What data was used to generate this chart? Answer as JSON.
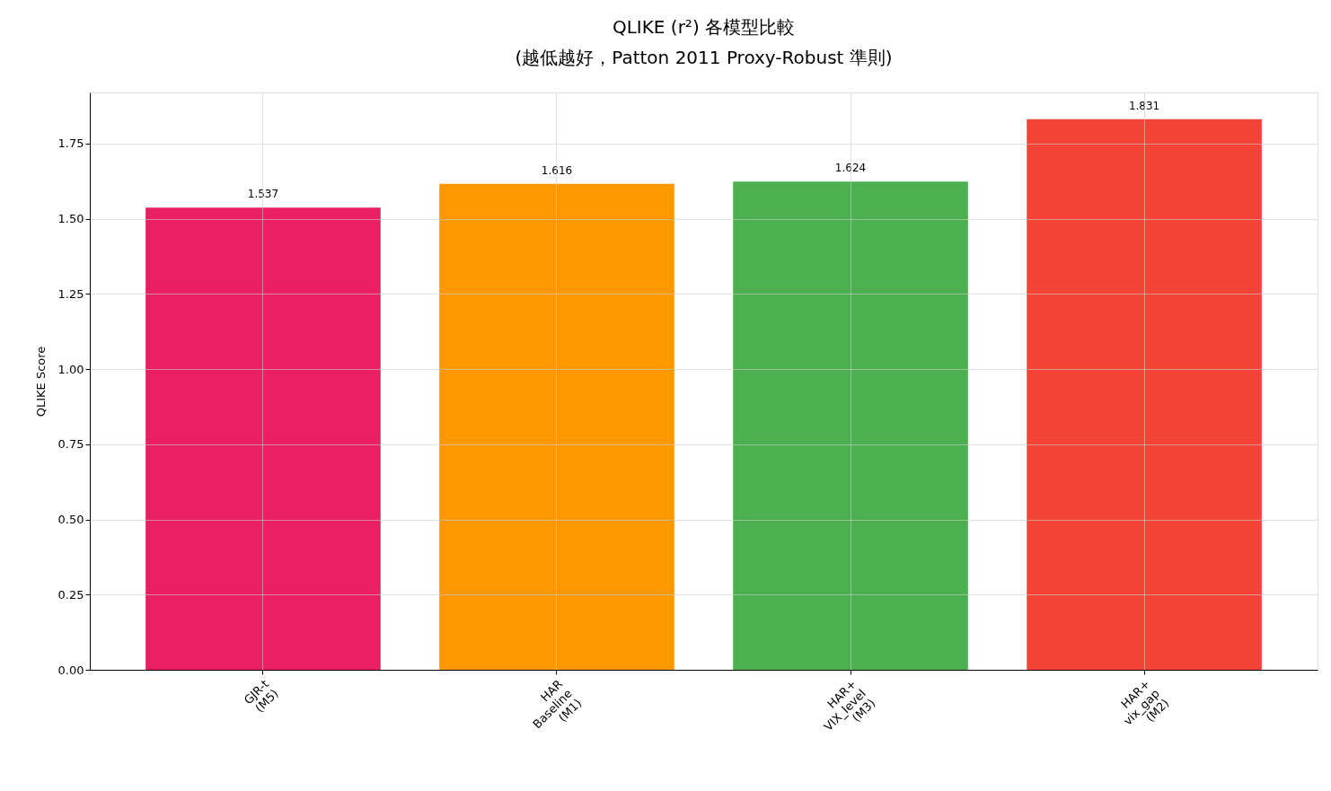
{
  "chart_data": {
    "type": "bar",
    "title": "QLIKE (r²) 各模型比較\n(越低越好，Patton 2011 Proxy-Robust 準則)",
    "ylabel": "QLIKE Score",
    "categories": [
      "GJR-t\n(M5)",
      "HAR\nBaseline\n(M1)",
      "HAR+\nVIX_level\n(M3)",
      "HAR+\nvix_gap\n(M2)"
    ],
    "values": [
      1.537,
      1.616,
      1.624,
      1.831
    ],
    "colors": [
      "#e91e63",
      "#ff9800",
      "#4caf50",
      "#f44336"
    ],
    "ylim": [
      0,
      1.92
    ],
    "yticks": [
      {
        "value": 0,
        "label": "0.00"
      },
      {
        "value": 0.25,
        "label": "0.25"
      },
      {
        "value": 0.5,
        "label": "0.50"
      },
      {
        "value": 0.75,
        "label": "0.75"
      },
      {
        "value": 1,
        "label": "1.00"
      },
      {
        "value": 1.25,
        "label": "1.25"
      },
      {
        "value": 1.5,
        "label": "1.50"
      },
      {
        "value": 1.75,
        "label": "1.75"
      }
    ],
    "grid": true,
    "data_labels": true
  }
}
